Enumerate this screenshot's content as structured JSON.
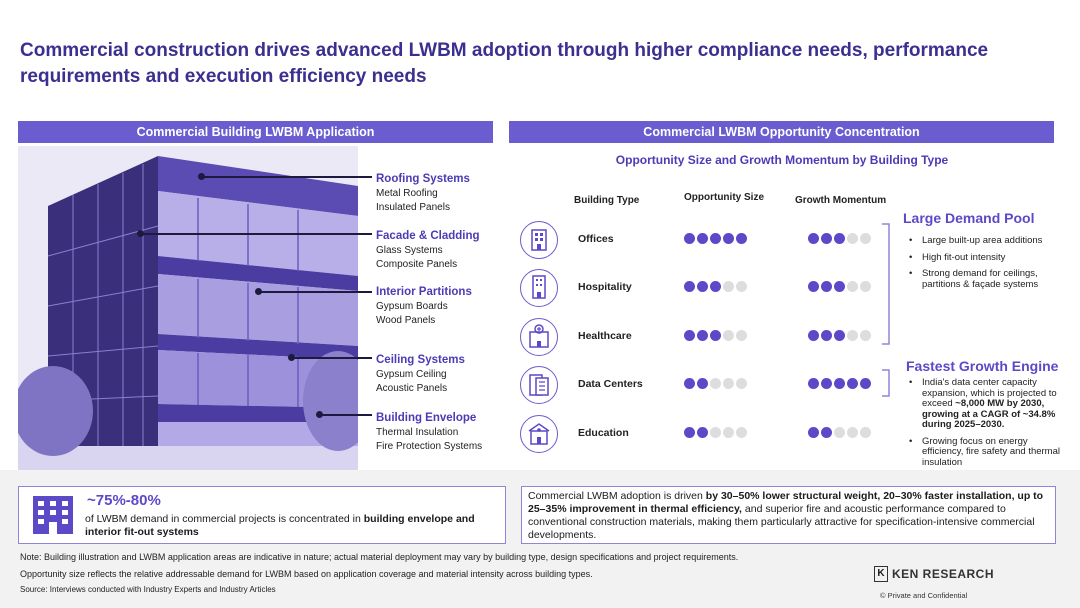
{
  "title": "Commercial construction drives advanced LWBM adoption through higher compliance needs, performance requirements and execution efficiency needs",
  "left_bar": "Commercial Building LWBM Application",
  "right_bar": "Commercial LWBM Opportunity Concentration",
  "subtitle": "Opportunity Size and Growth Momentum  by Building Type",
  "callouts": [
    {
      "heading": "Roofing Systems",
      "line1": "Metal Roofing",
      "line2": "Insulated Panels"
    },
    {
      "heading": "Facade & Cladding",
      "line1": "Glass Systems",
      "line2": "Composite Panels"
    },
    {
      "heading": "Interior Partitions",
      "line1": "Gypsum Boards",
      "line2": "Wood Panels"
    },
    {
      "heading": "Ceiling Systems",
      "line1": "Gypsum Ceiling",
      "line2": "Acoustic Panels"
    },
    {
      "heading": "Building Envelope",
      "line1": "Thermal Insulation",
      "line2": "Fire Protection Systems"
    }
  ],
  "table_headers": {
    "type": "Building Type",
    "size": "Opportunity Size",
    "growth": "Growth Momentum"
  },
  "rows": [
    {
      "label": "Offices",
      "size": 5,
      "growth": 3,
      "icon": "office-building-icon"
    },
    {
      "label": "Hospitality",
      "size": 3,
      "growth": 3,
      "icon": "hotel-icon"
    },
    {
      "label": "Healthcare",
      "size": 3,
      "growth": 3,
      "icon": "hospital-icon"
    },
    {
      "label": "Data Centers",
      "size": 2,
      "growth": 5,
      "icon": "data-center-icon"
    },
    {
      "label": "Education",
      "size": 2,
      "growth": 2,
      "icon": "school-icon"
    }
  ],
  "large_pool": {
    "heading": "Large Demand Pool",
    "bullets": [
      "Large built-up area additions",
      "High fit-out intensity",
      "Strong demand for ceilings, partitions & façade systems"
    ]
  },
  "fastest": {
    "heading": "Fastest Growth Engine",
    "b1_pre": "India's data center capacity expansion, which is projected to exceed ",
    "b1_bold": "~8,000 MW by 2030, growing at a CAGR of ~34.8% during 2025–2030.",
    "b2": "Growing focus on energy efficiency, fire safety and thermal insulation"
  },
  "stat": {
    "value": "~75%-80%",
    "text_pre": "of LWBM demand in commercial projects is concentrated in ",
    "text_bold": "building envelope and interior fit-out systems"
  },
  "summary": {
    "p1": "Commercial LWBM adoption is driven ",
    "b1": "by 30–50% lower structural weight, 20–30% faster installation, up to 25–35% improvement in thermal efficiency,",
    "p2": " and superior fire and acoustic performance compared to conventional construction materials, making them particularly attractive for specification-intensive commercial developments."
  },
  "notes": [
    "Note: Building illustration and LWBM application areas are indicative in nature; actual material deployment may vary by building type, design specifications and project requirements.",
    "Opportunity size reflects the relative addressable demand for LWBM based on application coverage and material intensity across building types.",
    "Source: Interviews conducted with Industry Experts and Industry Articles"
  ],
  "brand": "KEN RESEARCH",
  "confidential": "© Private and Confidential",
  "colors": {
    "accent": "#6b5ccf",
    "title": "#3b2f8f",
    "dot_on": "#5b49c7",
    "dot_off": "#dddddd"
  }
}
